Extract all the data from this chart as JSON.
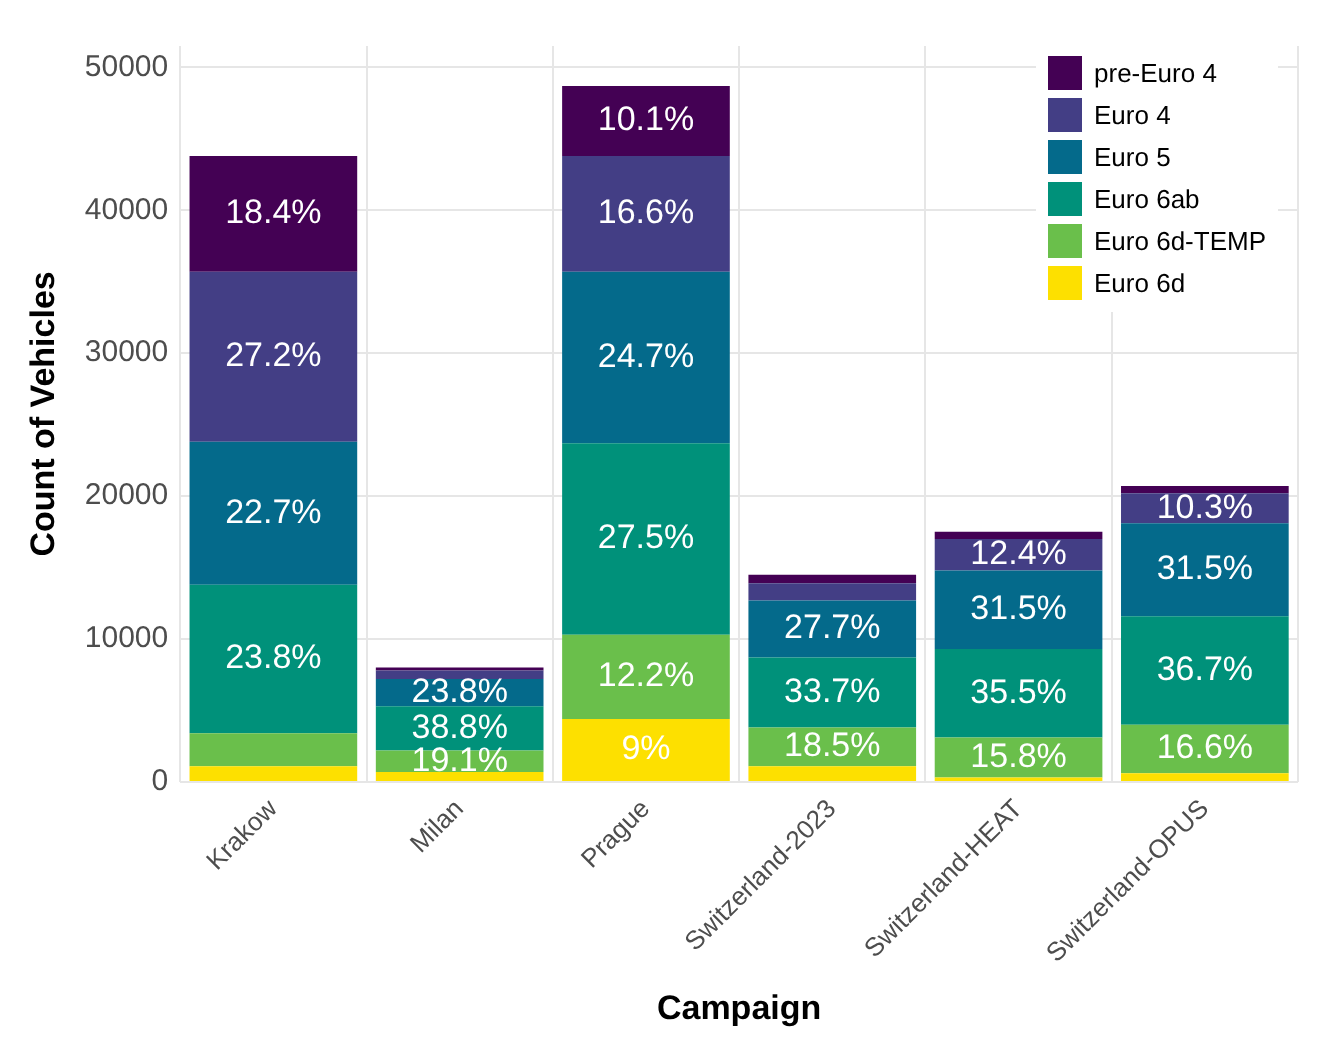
{
  "chart_data": {
    "type": "bar",
    "stacked": true,
    "xlabel": "Campaign",
    "ylabel": "Count of Vehicles",
    "categories": [
      "Krakow",
      "Milan",
      "Prague",
      "Switzerland-2023",
      "Switzerland-HEAT",
      "Switzerland-OPUS"
    ],
    "ylim": [
      0,
      51500
    ],
    "yticks": [
      0,
      10000,
      20000,
      30000,
      40000,
      50000
    ],
    "grid": true,
    "legend": "top right",
    "series": [
      {
        "name": "Euro 6d",
        "color": "#fde000",
        "values": [
          1100,
          700,
          4400,
          1100,
          300,
          600
        ]
      },
      {
        "name": "Euro 6d-TEMP",
        "color": "#6abf4b",
        "values": [
          2300,
          1500,
          5900,
          2700,
          2800,
          3400
        ]
      },
      {
        "name": "Euro 6ab",
        "color": "#00917a",
        "values": [
          10400,
          3100,
          13400,
          4900,
          6200,
          7600
        ]
      },
      {
        "name": "Euro 5",
        "color": "#046a8b",
        "values": [
          10000,
          1900,
          12000,
          4000,
          5500,
          6500
        ]
      },
      {
        "name": "Euro 4",
        "color": "#433e85",
        "values": [
          11900,
          600,
          8100,
          1200,
          2200,
          2100
        ]
      },
      {
        "name": "pre-Euro 4",
        "color": "#440154",
        "values": [
          8100,
          200,
          4900,
          600,
          500,
          500
        ]
      }
    ],
    "annotations": [
      {
        "text": "23.8%",
        "x": "Krakow",
        "y": 13800
      },
      {
        "text": "22.7%",
        "x": "Krakow",
        "y": 23800
      },
      {
        "text": "27.2%",
        "x": "Krakow",
        "y": 35700
      },
      {
        "text": "18.4%",
        "x": "Krakow",
        "y": 43800
      },
      {
        "text": "19.1%",
        "x": "Milan",
        "y": 2200
      },
      {
        "text": "38.8%",
        "x": "Milan",
        "y": 5300
      },
      {
        "text": "23.8%",
        "x": "Milan",
        "y": 7200
      },
      {
        "text": "9%",
        "x": "Prague",
        "y": 4400
      },
      {
        "text": "12.2%",
        "x": "Prague",
        "y": 10300
      },
      {
        "text": "27.5%",
        "x": "Prague",
        "y": 23700
      },
      {
        "text": "24.7%",
        "x": "Prague",
        "y": 35700
      },
      {
        "text": "16.6%",
        "x": "Prague",
        "y": 43800
      },
      {
        "text": "10.1%",
        "x": "Prague",
        "y": 48700
      },
      {
        "text": "18.5%",
        "x": "Switzerland-2023",
        "y": 3800
      },
      {
        "text": "33.7%",
        "x": "Switzerland-2023",
        "y": 8700
      },
      {
        "text": "27.7%",
        "x": "Switzerland-2023",
        "y": 12700
      },
      {
        "text": "15.8%",
        "x": "Switzerland-HEAT",
        "y": 3100
      },
      {
        "text": "35.5%",
        "x": "Switzerland-HEAT",
        "y": 9300
      },
      {
        "text": "31.5%",
        "x": "Switzerland-HEAT",
        "y": 14800
      },
      {
        "text": "12.4%",
        "x": "Switzerland-HEAT",
        "y": 17000
      },
      {
        "text": "16.6%",
        "x": "Switzerland-OPUS",
        "y": 4000
      },
      {
        "text": "36.7%",
        "x": "Switzerland-OPUS",
        "y": 11600
      },
      {
        "text": "31.5%",
        "x": "Switzerland-OPUS",
        "y": 18100
      },
      {
        "text": "10.3%",
        "x": "Switzerland-OPUS",
        "y": 20200
      }
    ]
  }
}
